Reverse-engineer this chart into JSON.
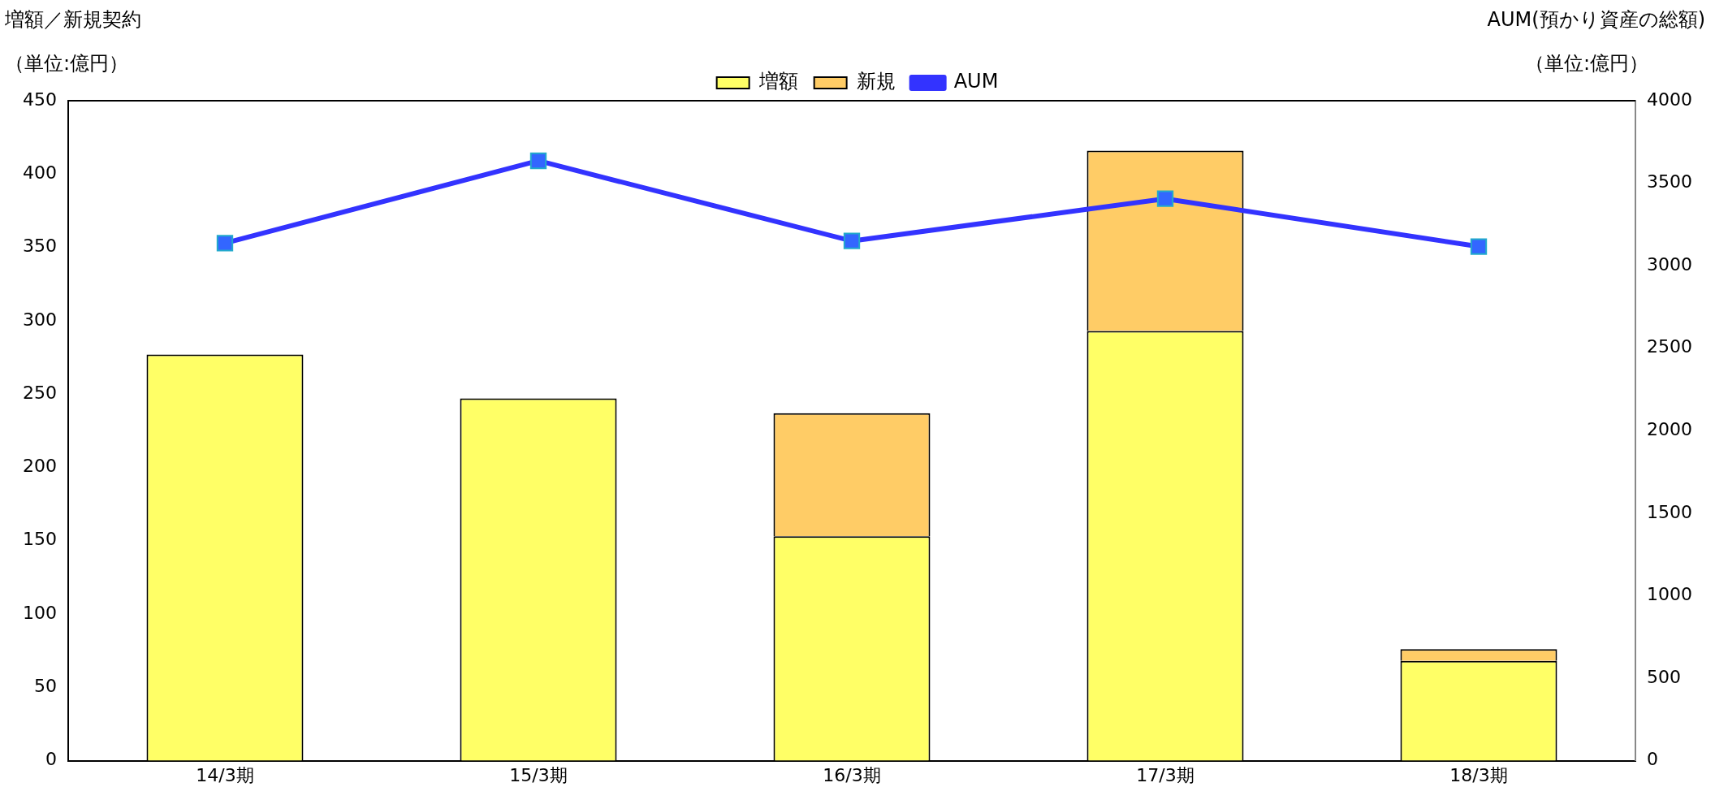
{
  "chart_data": {
    "type": "bar",
    "ylabel": "増額／新規契約",
    "y2label": "AUM(預かり資産の総額)",
    "annotations": [
      "（単位:億円）",
      "（単位:億円）"
    ],
    "categories": [
      "14/3期",
      "15/3期",
      "16/3期",
      "17/3期",
      "18/3期"
    ],
    "stacked": true,
    "series": [
      {
        "name": "増額",
        "color": "#ffff66",
        "values": [
          277,
          247,
          153,
          293,
          68
        ]
      },
      {
        "name": "新規",
        "color": "#ffcc66",
        "values": [
          0,
          0,
          84,
          123,
          8
        ]
      },
      {
        "name": "AUM",
        "type": "line",
        "axis": "y2",
        "color": "#3333ff",
        "marker": "square",
        "values": [
          3137,
          3636,
          3150,
          3406,
          3116
        ]
      }
    ],
    "ylim": [
      0,
      450
    ],
    "yticks": [
      0,
      50,
      100,
      150,
      200,
      250,
      300,
      350,
      400,
      450
    ],
    "y2lim": [
      0,
      4000
    ],
    "y2ticks": [
      0,
      500,
      1000,
      1500,
      2000,
      2500,
      3000,
      3500,
      4000
    ],
    "grid": false,
    "legend": "top"
  }
}
